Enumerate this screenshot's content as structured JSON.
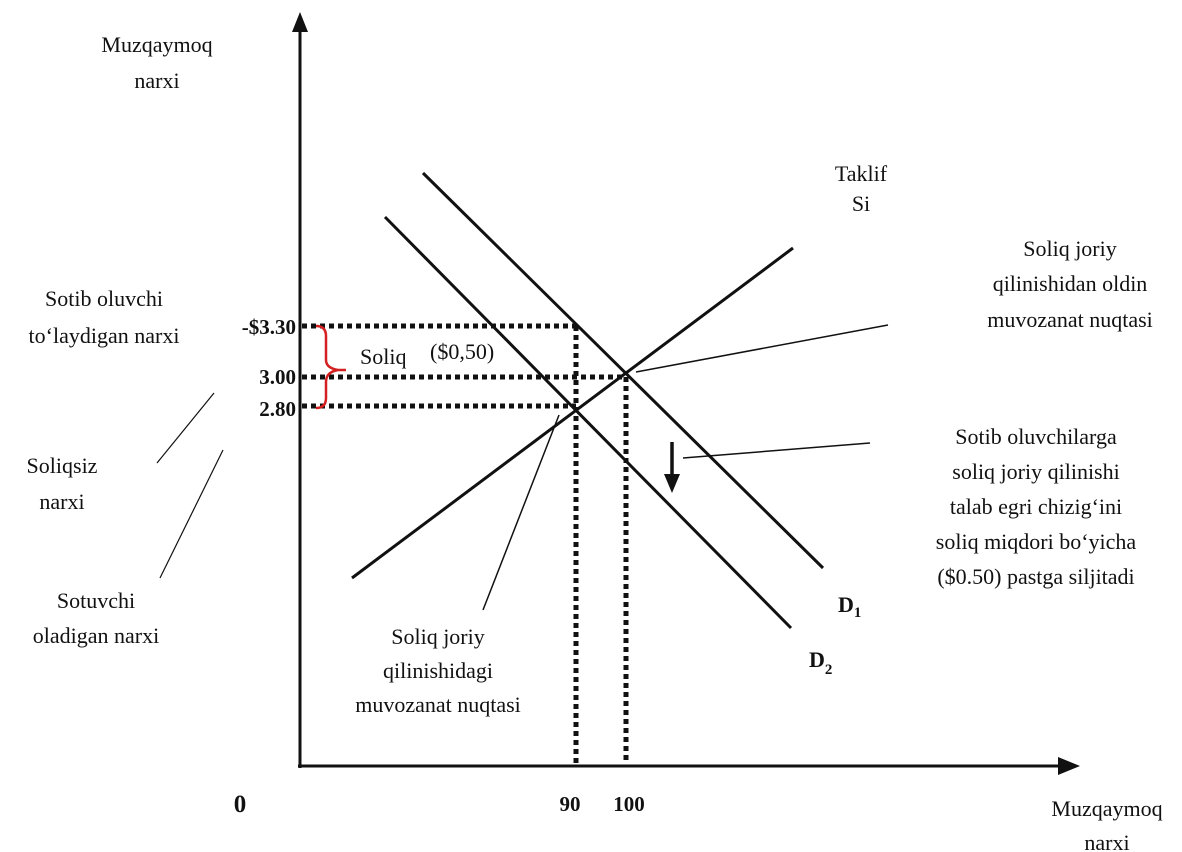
{
  "y_axis_label": [
    "Muzqaymoq",
    "narxi"
  ],
  "x_axis_label": [
    "Muzqaymoq",
    "narxi"
  ],
  "origin": "0",
  "price_ticks": {
    "buyer": "-$3.30",
    "equilibrium": "3.00",
    "seller": "2.80"
  },
  "quantity_ticks": {
    "after_tax": "90",
    "before_tax": "100"
  },
  "tax_label": {
    "word": "Soliq",
    "amount": "($0,50)"
  },
  "supply_label": [
    "Taklif",
    "Si"
  ],
  "demand_labels": {
    "d1": {
      "letter": "D",
      "sub": "1"
    },
    "d2": {
      "letter": "D",
      "sub": "2"
    }
  },
  "annotations": {
    "buyer_price": [
      "Sotib oluvchi",
      "to‘laydigan narxi"
    ],
    "no_tax_price": [
      "Soliqsiz",
      "narxi"
    ],
    "seller_price": [
      "Sotuvchi",
      "oladigan narxi"
    ],
    "before_tax_eq": [
      "Soliq joriy",
      "qilinishidan oldin",
      "muvozanat nuqtasi"
    ],
    "shift_note": [
      "Sotib oluvchilarga",
      "soliq joriy qilinishi",
      "talab egri chizig‘ini",
      "soliq miqdori bo‘yicha",
      "($0.50) pastga siljitadi"
    ],
    "during_tax_eq": [
      "Soliq joriy",
      "qilinishidagi",
      "muvozanat nuqtasi"
    ]
  },
  "colors": {
    "lines": "#111111",
    "tax_bracket": "#d42020"
  }
}
